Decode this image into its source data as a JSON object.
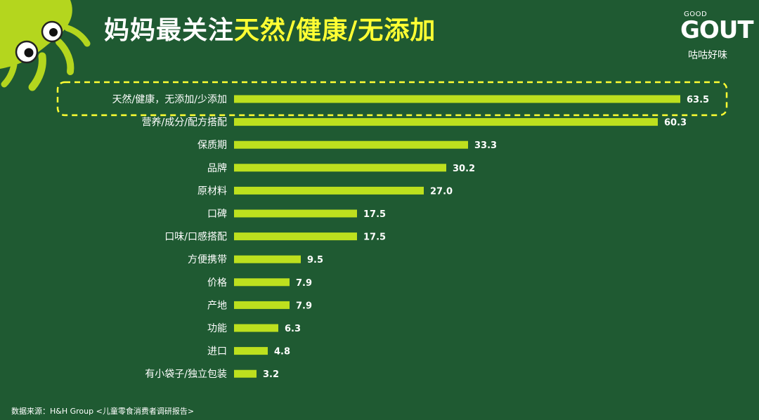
{
  "header": {
    "title_part1": "妈妈最关注",
    "title_part2": "天然/健康/无添加"
  },
  "logo": {
    "good": "GOOD",
    "gout": "GOUT",
    "cn": "咕咕好味"
  },
  "colors": {
    "background": "#1f5a32",
    "bar": "#bde01e",
    "title_highlight": "#ffff33",
    "highlight_border": "#ffff33"
  },
  "chart_data": {
    "type": "bar",
    "orientation": "horizontal",
    "categories": [
      "天然/健康，无添加/少添加",
      "营养/成分/配方搭配",
      "保质期",
      "品牌",
      "原材料",
      "口碑",
      "口味/口感搭配",
      "方便携带",
      "价格",
      "产地",
      "功能",
      "进口",
      "有小袋子/独立包装"
    ],
    "values": [
      63.5,
      60.3,
      33.3,
      30.2,
      27.0,
      17.5,
      17.5,
      9.5,
      7.9,
      7.9,
      6.3,
      4.8,
      3.2
    ],
    "value_labels": [
      "63.5",
      "60.3",
      "33.3",
      "30.2",
      "27.0",
      "17.5",
      "17.5",
      "9.5",
      "7.9",
      "7.9",
      "6.3",
      "4.8",
      "3.2"
    ],
    "highlighted_category": "天然/健康，无添加/少添加",
    "title": "",
    "xlabel": "",
    "ylabel": "",
    "grid": false,
    "legend": "none"
  },
  "footer": {
    "source": "数据来源：H&H Group <儿童零食消费者调研报告>"
  }
}
